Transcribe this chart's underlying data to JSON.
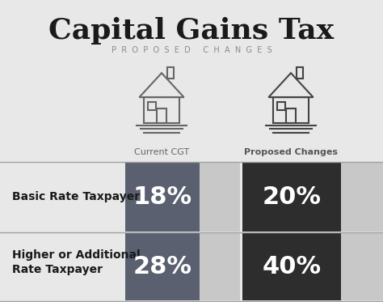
{
  "title": "Capital Gains Tax",
  "subtitle": "PROPOSED CHANGES",
  "background_color": "#e8e8e8",
  "col1_label": "Current CGT",
  "col2_label": "Proposed Changes",
  "row1_label": "Basic Rate Taxpayer",
  "row2_label1": "Higher or Additional",
  "row2_label2": "Rate Taxpayer",
  "row1_val1": "18%",
  "row1_val2": "20%",
  "row2_val1": "28%",
  "row2_val2": "40%",
  "color_dark_blue": "#5a6070",
  "color_very_dark": "#2d2d2d",
  "color_light_gray": "#c8c8c8",
  "color_medium_gray": "#9a9a9a",
  "divider_color": "#a0a0a0",
  "label_color": "#1a1a1a",
  "title_color": "#1a1a1a",
  "subtitle_color": "#8a8a8a"
}
